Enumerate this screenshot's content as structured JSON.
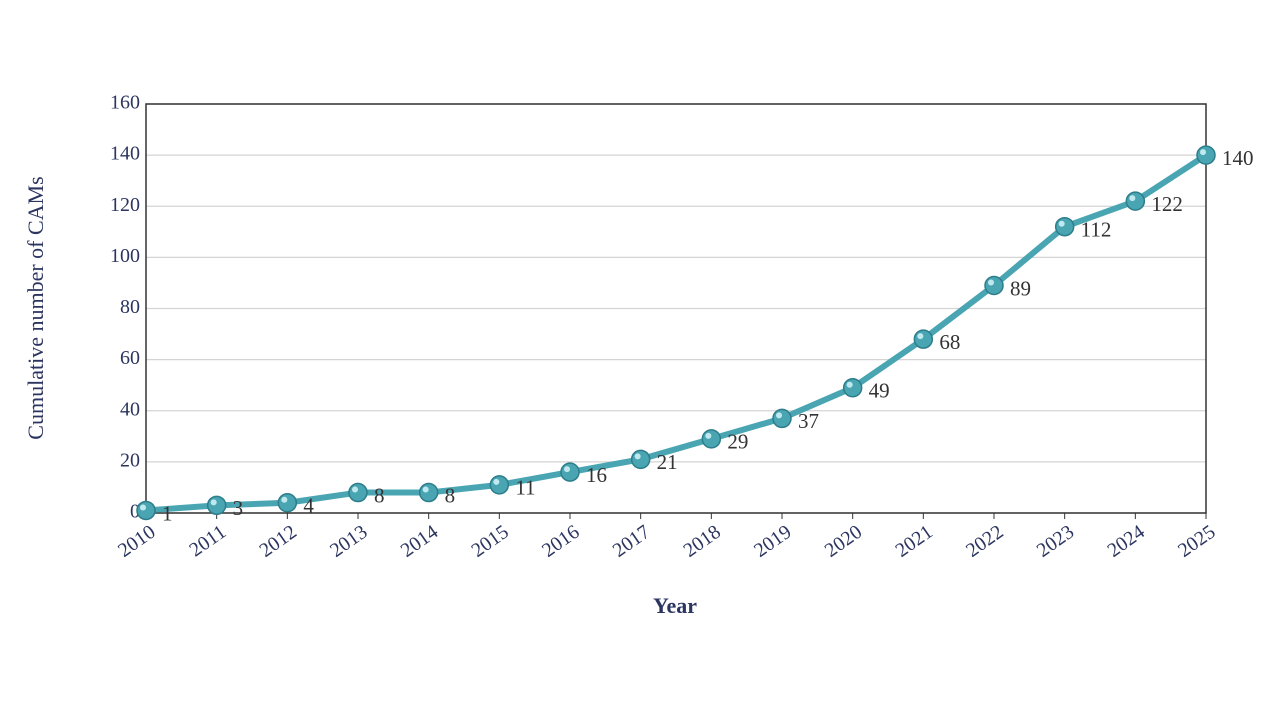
{
  "chart_data": {
    "type": "line",
    "x_label": "Year",
    "y_label": "Cumulative number of CAMs",
    "categories": [
      "2010",
      "2011",
      "2012",
      "2013",
      "2014",
      "2015",
      "2016",
      "2017",
      "2018",
      "2019",
      "2020",
      "2021",
      "2022",
      "2023",
      "2024",
      "2025"
    ],
    "values": [
      1,
      3,
      4,
      8,
      8,
      11,
      16,
      21,
      29,
      37,
      49,
      68,
      89,
      112,
      122,
      140
    ],
    "color": "#4aa5b3",
    "ylim": [
      0,
      160
    ],
    "yticks": [
      0,
      20,
      40,
      60,
      80,
      100,
      120,
      140,
      160
    ],
    "grid": true,
    "data_labels": true
  }
}
